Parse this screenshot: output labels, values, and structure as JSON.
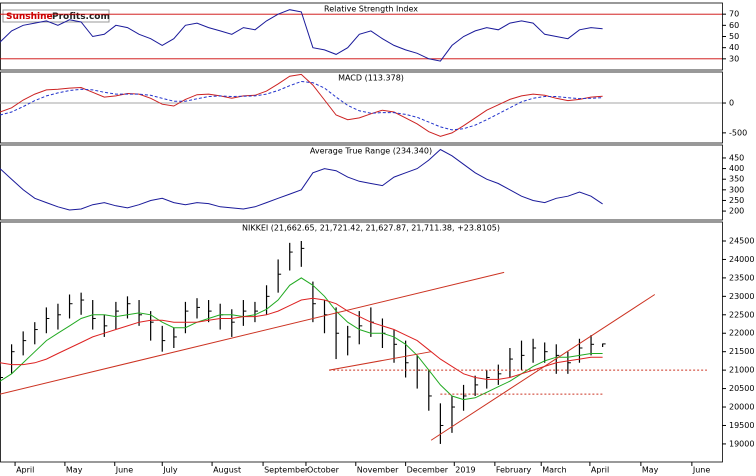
{
  "logo": [
    "Sunshine",
    "Profits.com"
  ],
  "chart_data": [
    {
      "type": "line",
      "title": "Relative Strength Index",
      "xlim": [
        0,
        62.3
      ],
      "ylim": [
        20,
        80
      ],
      "yticks": [
        30,
        40,
        50,
        60,
        70
      ],
      "reference_lines": [
        {
          "value": 70,
          "color": "#cc0000"
        },
        {
          "value": 30,
          "color": "#cc0000"
        }
      ],
      "x": [
        0,
        1,
        2,
        3,
        4,
        5,
        6,
        7,
        8,
        9,
        10,
        11,
        12,
        13,
        14,
        15,
        16,
        17,
        18,
        19,
        20,
        21,
        22,
        23,
        24,
        25,
        26,
        27,
        28,
        29,
        30,
        31,
        32,
        33,
        34,
        35,
        36,
        37,
        38,
        39,
        40,
        41,
        42,
        43,
        44,
        45,
        46,
        47,
        48,
        49,
        50,
        51,
        52
      ],
      "series": [
        {
          "color": "#1a1a9a",
          "style": "solid",
          "values": [
            45,
            55,
            60,
            62,
            64,
            60,
            65,
            63,
            50,
            52,
            60,
            58,
            52,
            48,
            42,
            48,
            60,
            62,
            58,
            55,
            52,
            58,
            56,
            64,
            70,
            74,
            72,
            40,
            38,
            34,
            40,
            52,
            55,
            48,
            42,
            38,
            35,
            30,
            28,
            42,
            50,
            55,
            58,
            56,
            62,
            64,
            62,
            52,
            50,
            48,
            56,
            58,
            57
          ]
        }
      ]
    },
    {
      "type": "line",
      "title": "MACD (113.378)",
      "xlim": [
        0,
        62.3
      ],
      "ylim": [
        -670,
        520
      ],
      "yticks": [
        -500,
        0
      ],
      "reference_lines": [
        {
          "value": 0,
          "color": "#888888"
        }
      ],
      "x": [
        0,
        1,
        2,
        3,
        4,
        5,
        6,
        7,
        8,
        9,
        10,
        11,
        12,
        13,
        14,
        15,
        16,
        17,
        18,
        19,
        20,
        21,
        22,
        23,
        24,
        25,
        26,
        27,
        28,
        29,
        30,
        31,
        32,
        33,
        34,
        35,
        36,
        37,
        38,
        39,
        40,
        41,
        42,
        43,
        44,
        45,
        46,
        47,
        48,
        49,
        50,
        51,
        52
      ],
      "series": [
        {
          "color": "#cc2222",
          "style": "solid",
          "values": [
            -150,
            -80,
            50,
            150,
            220,
            230,
            250,
            260,
            180,
            100,
            120,
            160,
            150,
            80,
            -20,
            -50,
            60,
            140,
            150,
            120,
            80,
            120,
            130,
            200,
            320,
            450,
            480,
            300,
            50,
            -200,
            -280,
            -250,
            -180,
            -120,
            -150,
            -250,
            -350,
            -480,
            -560,
            -500,
            -380,
            -250,
            -120,
            -30,
            60,
            120,
            150,
            130,
            80,
            40,
            60,
            100,
            113
          ]
        },
        {
          "color": "#2233cc",
          "style": "dashed",
          "values": [
            -200,
            -150,
            -60,
            40,
            120,
            170,
            210,
            230,
            220,
            180,
            150,
            150,
            150,
            130,
            80,
            30,
            30,
            70,
            110,
            120,
            110,
            115,
            120,
            150,
            210,
            290,
            360,
            340,
            250,
            100,
            -40,
            -130,
            -170,
            -160,
            -160,
            -190,
            -240,
            -320,
            -400,
            -450,
            -430,
            -370,
            -280,
            -180,
            -80,
            20,
            80,
            110,
            110,
            90,
            75,
            80,
            90
          ]
        }
      ]
    },
    {
      "type": "line",
      "title": "Average True Range (234.340)",
      "xlim": [
        0,
        62.3
      ],
      "ylim": [
        158,
        511
      ],
      "yticks": [
        200,
        250,
        300,
        350,
        400,
        450
      ],
      "x": [
        0,
        1,
        2,
        3,
        4,
        5,
        6,
        7,
        8,
        9,
        10,
        11,
        12,
        13,
        14,
        15,
        16,
        17,
        18,
        19,
        20,
        21,
        22,
        23,
        24,
        25,
        26,
        27,
        28,
        29,
        30,
        31,
        32,
        33,
        34,
        35,
        36,
        37,
        38,
        39,
        40,
        41,
        42,
        43,
        44,
        45,
        46,
        47,
        48,
        49,
        50,
        51,
        52
      ],
      "series": [
        {
          "color": "#1a1a9a",
          "style": "solid",
          "values": [
            400,
            350,
            300,
            260,
            240,
            220,
            205,
            210,
            230,
            240,
            225,
            215,
            230,
            250,
            260,
            240,
            230,
            240,
            235,
            220,
            215,
            210,
            220,
            240,
            260,
            280,
            300,
            380,
            400,
            390,
            360,
            340,
            330,
            320,
            360,
            380,
            400,
            440,
            490,
            460,
            420,
            380,
            350,
            330,
            300,
            270,
            250,
            240,
            260,
            270,
            290,
            270,
            234
          ]
        }
      ]
    },
    {
      "type": "ohlc",
      "title": "NIKKEI (21,662.65, 21,721.42, 21,627.87, 21,711.38, +23.8105)",
      "xlim": [
        0,
        62.3
      ],
      "ylim": [
        18510,
        25015
      ],
      "yticks": [
        19000,
        19500,
        20000,
        20500,
        21000,
        21500,
        22000,
        22500,
        23000,
        23500,
        24000,
        24500
      ],
      "xticks": [
        {
          "value": 1.3,
          "label": "April"
        },
        {
          "value": 5.6,
          "label": "May"
        },
        {
          "value": 9.9,
          "label": "June"
        },
        {
          "value": 14,
          "label": "July"
        },
        {
          "value": 18.3,
          "label": "August"
        },
        {
          "value": 22.7,
          "label": "September"
        },
        {
          "value": 26.4,
          "label": "October"
        },
        {
          "value": 30.7,
          "label": "November"
        },
        {
          "value": 35,
          "label": "December"
        },
        {
          "value": 39.2,
          "label": "2019"
        },
        {
          "value": 42.7,
          "label": "February"
        },
        {
          "value": 46.7,
          "label": "March"
        },
        {
          "value": 50.9,
          "label": "April"
        },
        {
          "value": 55.3,
          "label": "May"
        },
        {
          "value": 59.7,
          "label": "June"
        }
      ],
      "x": [
        0,
        1,
        2,
        3,
        4,
        5,
        6,
        7,
        8,
        9,
        10,
        11,
        12,
        13,
        14,
        15,
        16,
        17,
        18,
        19,
        20,
        21,
        22,
        23,
        24,
        25,
        26,
        27,
        28,
        29,
        30,
        31,
        32,
        33,
        34,
        35,
        36,
        37,
        38,
        39,
        40,
        41,
        42,
        43,
        44,
        45,
        46,
        47,
        48,
        49,
        50,
        51,
        52
      ],
      "bar_color": "#000000",
      "high": [
        21100,
        21700,
        22050,
        22300,
        22700,
        22800,
        23050,
        23100,
        22900,
        22500,
        22850,
        23000,
        22900,
        22600,
        22200,
        22150,
        22850,
        22950,
        22900,
        22800,
        22650,
        22900,
        22850,
        23300,
        24000,
        24450,
        24500,
        23400,
        22900,
        22700,
        22200,
        22600,
        22700,
        22400,
        22100,
        21800,
        21400,
        21000,
        20100,
        20300,
        20600,
        20850,
        21000,
        21150,
        21600,
        21800,
        21850,
        21750,
        21700,
        21500,
        21850,
        21950,
        21721
      ],
      "low": [
        20400,
        20900,
        21400,
        21700,
        22000,
        22100,
        22400,
        22500,
        22100,
        21900,
        22100,
        22400,
        22200,
        21800,
        21500,
        21600,
        22000,
        22400,
        22300,
        22100,
        21900,
        22200,
        22300,
        22500,
        23100,
        23700,
        23800,
        22300,
        22000,
        21300,
        21400,
        21700,
        21900,
        21600,
        21200,
        20800,
        20500,
        19900,
        19000,
        19300,
        19900,
        20300,
        20500,
        20600,
        20800,
        21000,
        21200,
        21200,
        20900,
        20900,
        21200,
        21400,
        21627
      ],
      "close": [
        20800,
        21500,
        21800,
        22100,
        22400,
        22500,
        22800,
        22900,
        22400,
        22200,
        22600,
        22800,
        22500,
        22300,
        21800,
        21900,
        22600,
        22700,
        22600,
        22500,
        22300,
        22600,
        22600,
        23000,
        23600,
        24200,
        24300,
        22800,
        22500,
        22000,
        21900,
        22200,
        22300,
        22000,
        21700,
        21200,
        21000,
        20300,
        19500,
        20000,
        20300,
        20600,
        20800,
        20900,
        21300,
        21400,
        21600,
        21500,
        21400,
        21200,
        21600,
        21700,
        21711
      ],
      "series": [
        {
          "color": "#22aa22",
          "style": "solid",
          "values": [
            20700,
            20900,
            21200,
            21500,
            21800,
            22000,
            22200,
            22400,
            22500,
            22500,
            22450,
            22500,
            22550,
            22500,
            22300,
            22150,
            22150,
            22300,
            22400,
            22500,
            22500,
            22450,
            22500,
            22650,
            22900,
            23300,
            23500,
            23300,
            23000,
            22600,
            22300,
            22100,
            22000,
            22000,
            21900,
            21700,
            21400,
            21000,
            20600,
            20300,
            20200,
            20250,
            20400,
            20550,
            20700,
            20900,
            21100,
            21250,
            21350,
            21350,
            21400,
            21450,
            21450
          ]
        },
        {
          "color": "#dd2222",
          "style": "solid",
          "values": [
            21200,
            21150,
            21150,
            21200,
            21300,
            21450,
            21600,
            21750,
            21900,
            22000,
            22100,
            22200,
            22300,
            22350,
            22350,
            22300,
            22300,
            22300,
            22350,
            22400,
            22400,
            22450,
            22450,
            22500,
            22600,
            22750,
            22900,
            22950,
            22900,
            22800,
            22600,
            22450,
            22300,
            22200,
            22100,
            21950,
            21800,
            21550,
            21300,
            21100,
            20900,
            20800,
            20750,
            20750,
            20800,
            20900,
            21000,
            21100,
            21200,
            21250,
            21300,
            21350,
            21350
          ]
        }
      ],
      "trendlines": [
        {
          "color": "#cc3322",
          "x": [
            0,
            43.5
          ],
          "y": [
            20350,
            23650
          ]
        },
        {
          "color": "#cc3322",
          "x": [
            28.4,
            37.2
          ],
          "y": [
            21000,
            21500
          ]
        },
        {
          "color": "#cc3322",
          "x": [
            37.2,
            56.5
          ],
          "y": [
            19100,
            23050
          ]
        }
      ],
      "levels": [
        {
          "color": "#cc3322",
          "value": 21000,
          "x": [
            28.4,
            61
          ]
        },
        {
          "color": "#cc3322",
          "value": 20350,
          "x": [
            38,
            52
          ]
        }
      ]
    }
  ]
}
